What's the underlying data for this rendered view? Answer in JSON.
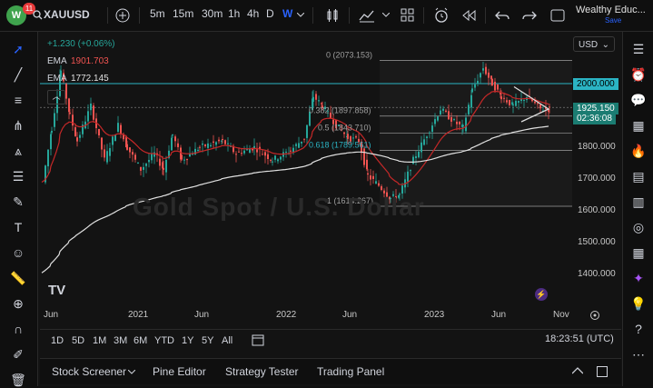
{
  "header": {
    "notifications": "11",
    "symbol": "XAUUSD",
    "timeframes": [
      "5m",
      "15m",
      "30m",
      "1h",
      "4h",
      "D",
      "W"
    ],
    "active_timeframe": "W",
    "account_name": "Wealthy Educ...",
    "account_status": "Save"
  },
  "legend": {
    "change": "+1.230 (+0.06%)",
    "ema1_label": "EMA",
    "ema1_value": "1901.703",
    "ema2_label": "EMA",
    "ema2_value": "1772.145"
  },
  "price_axis": {
    "currency": "USD",
    "ticks": [
      "1800.000",
      "1700.000",
      "1600.000",
      "1500.000",
      "1400.000"
    ],
    "level_2000": "2000.000",
    "current_price": "1925.150",
    "countdown": "02:36:08"
  },
  "fib": {
    "l0": "0 (2073.153)",
    "l382": "0.382 (1897.858)",
    "l5": "0.5 (1843.710)",
    "l618": "0.618 (1789.561)",
    "l1": "1 (1614.267)"
  },
  "time_axis": [
    "Jun",
    "2021",
    "Jun",
    "2022",
    "Jun",
    "2023",
    "Jun",
    "Nov"
  ],
  "ranges": [
    "1D",
    "5D",
    "1M",
    "3M",
    "6M",
    "YTD",
    "1Y",
    "5Y",
    "All"
  ],
  "clock": "18:23:51 (UTC)",
  "bottom_tabs": [
    "Stock Screener",
    "Pine Editor",
    "Strategy Tester",
    "Trading Panel"
  ],
  "watermark": "Gold Spot / U.S. Dollar",
  "logo_mark": "TV",
  "colors": {
    "up": "#26a69a",
    "down": "#ef5350",
    "ema_fast": "#c62828",
    "ema_slow": "#e0e0e0",
    "fib_line": "#2bb4c4",
    "accent": "#2962ff",
    "current_price_bg": "#1b7c72"
  }
}
